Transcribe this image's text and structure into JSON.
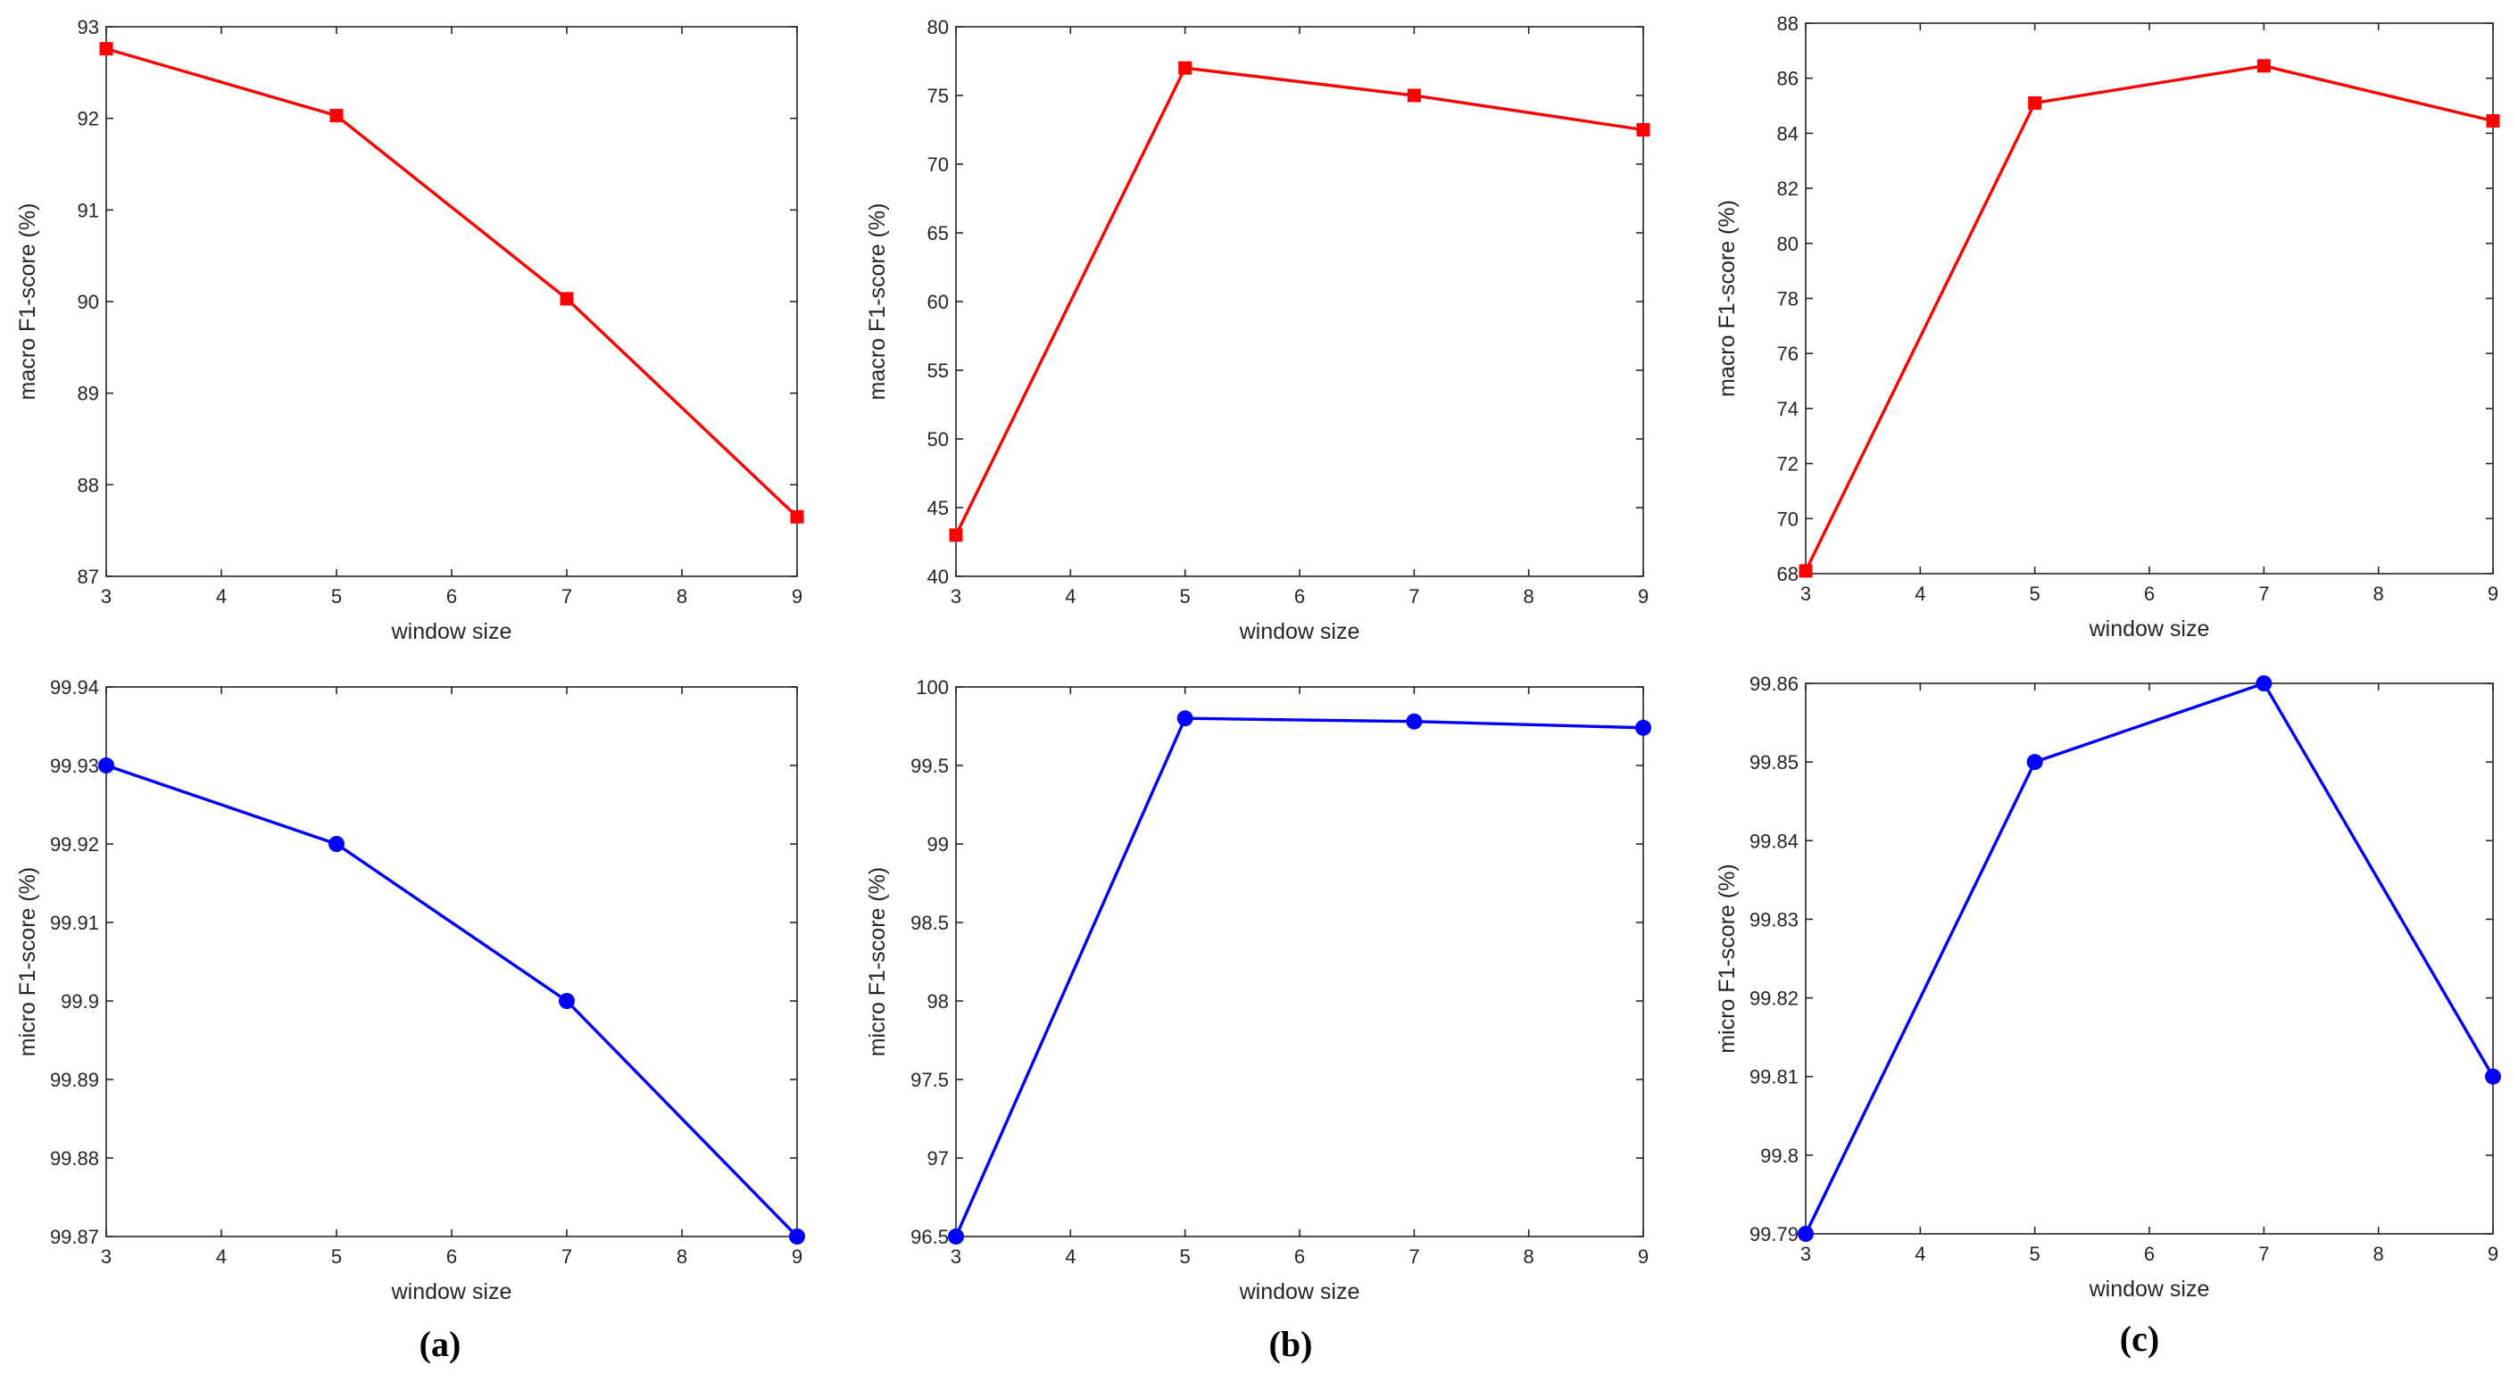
{
  "colors": {
    "macro": "#ff0000",
    "micro": "#0000ff",
    "axis": "#262626"
  },
  "captions": [
    "(a)",
    "(b)",
    "(c)"
  ],
  "chart_data": [
    {
      "type": "line",
      "title": "",
      "xlabel": "window size",
      "ylabel": "macro F1-score (%)",
      "x": [
        3,
        5,
        7,
        9
      ],
      "xlim": [
        3,
        9
      ],
      "xticks": [
        3,
        4,
        5,
        6,
        7,
        8,
        9
      ],
      "ylim": [
        87,
        93
      ],
      "yticks": [
        87,
        88,
        89,
        90,
        91,
        92,
        93
      ],
      "ytick_labels": [
        "87",
        "88",
        "89",
        "90",
        "91",
        "92",
        "93"
      ],
      "grid": false,
      "marker": "square",
      "color": "#ff0000",
      "series": [
        {
          "name": "macro F1-score",
          "values": [
            92.76,
            92.03,
            90.03,
            87.65
          ]
        }
      ]
    },
    {
      "type": "line",
      "title": "",
      "xlabel": "window size",
      "ylabel": "macro F1-score (%)",
      "x": [
        3,
        5,
        7,
        9
      ],
      "xlim": [
        3,
        9
      ],
      "xticks": [
        3,
        4,
        5,
        6,
        7,
        8,
        9
      ],
      "ylim": [
        40,
        80
      ],
      "yticks": [
        40,
        45,
        50,
        55,
        60,
        65,
        70,
        75,
        80
      ],
      "ytick_labels": [
        "40",
        "45",
        "50",
        "55",
        "60",
        "65",
        "70",
        "75",
        "80"
      ],
      "grid": false,
      "marker": "square",
      "color": "#ff0000",
      "series": [
        {
          "name": "macro F1-score",
          "values": [
            43.0,
            77.0,
            75.0,
            72.5
          ]
        }
      ]
    },
    {
      "type": "line",
      "title": "",
      "xlabel": "window size",
      "ylabel": "macro F1-score (%)",
      "x": [
        3,
        5,
        7,
        9
      ],
      "xlim": [
        3,
        9
      ],
      "xticks": [
        3,
        4,
        5,
        6,
        7,
        8,
        9
      ],
      "ylim": [
        68,
        88
      ],
      "yticks": [
        68,
        70,
        72,
        74,
        76,
        78,
        80,
        82,
        84,
        86,
        88
      ],
      "ytick_labels": [
        "68",
        "70",
        "72",
        "74",
        "76",
        "78",
        "80",
        "82",
        "84",
        "86",
        "88"
      ],
      "grid": false,
      "marker": "square",
      "color": "#ff0000",
      "series": [
        {
          "name": "macro F1-score",
          "values": [
            68.1,
            85.1,
            86.45,
            84.45
          ]
        }
      ]
    },
    {
      "type": "line",
      "title": "",
      "xlabel": "window size",
      "ylabel": "micro F1-score (%)",
      "x": [
        3,
        5,
        7,
        9
      ],
      "xlim": [
        3,
        9
      ],
      "xticks": [
        3,
        4,
        5,
        6,
        7,
        8,
        9
      ],
      "ylim": [
        99.87,
        99.94
      ],
      "yticks": [
        99.87,
        99.88,
        99.89,
        99.9,
        99.91,
        99.92,
        99.93,
        99.94
      ],
      "ytick_labels": [
        "99.87",
        "99.88",
        "99.89",
        "99.9",
        "99.91",
        "99.92",
        "99.93",
        "99.94"
      ],
      "grid": false,
      "marker": "circle",
      "color": "#0000ff",
      "series": [
        {
          "name": "micro F1-score",
          "values": [
            99.93,
            99.92,
            99.9,
            99.87
          ]
        }
      ]
    },
    {
      "type": "line",
      "title": "",
      "xlabel": "window size",
      "ylabel": "micro F1-score (%)",
      "x": [
        3,
        5,
        7,
        9
      ],
      "xlim": [
        3,
        9
      ],
      "xticks": [
        3,
        4,
        5,
        6,
        7,
        8,
        9
      ],
      "ylim": [
        96.5,
        100
      ],
      "yticks": [
        96.5,
        97,
        97.5,
        98,
        98.5,
        99,
        99.5,
        100
      ],
      "ytick_labels": [
        "96.5",
        "97",
        "97.5",
        "98",
        "98.5",
        "99",
        "99.5",
        "100"
      ],
      "grid": false,
      "marker": "circle",
      "color": "#0000ff",
      "series": [
        {
          "name": "micro F1-score",
          "values": [
            96.5,
            99.8,
            99.78,
            99.74
          ]
        }
      ]
    },
    {
      "type": "line",
      "title": "",
      "xlabel": "window size",
      "ylabel": "micro F1-score (%)",
      "x": [
        3,
        5,
        7,
        9
      ],
      "xlim": [
        3,
        9
      ],
      "xticks": [
        3,
        4,
        5,
        6,
        7,
        8,
        9
      ],
      "ylim": [
        99.79,
        99.86
      ],
      "yticks": [
        99.79,
        99.8,
        99.81,
        99.82,
        99.83,
        99.84,
        99.85,
        99.86
      ],
      "ytick_labels": [
        "99.79",
        "99.8",
        "99.81",
        "99.82",
        "99.83",
        "99.84",
        "99.85",
        "99.86"
      ],
      "grid": false,
      "marker": "circle",
      "color": "#0000ff",
      "series": [
        {
          "name": "micro F1-score",
          "values": [
            99.79,
            99.85,
            99.86,
            99.81
          ]
        }
      ]
    }
  ]
}
